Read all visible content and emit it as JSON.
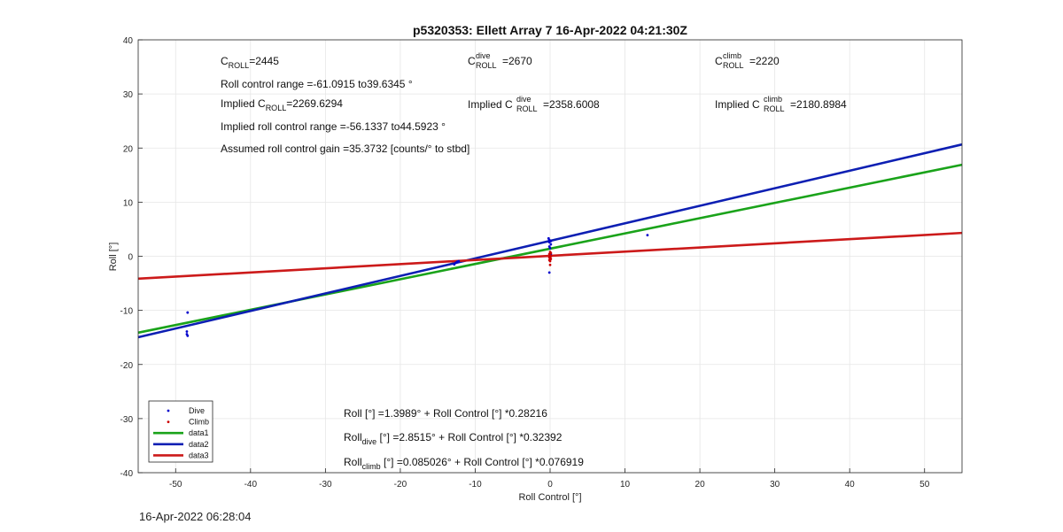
{
  "chart_data": {
    "type": "scatter",
    "title": "p5320353: Ellett Array 7 16-Apr-2022 04:21:30Z",
    "xlabel": "Roll Control [°]",
    "ylabel": "Roll [°]",
    "xlim": [
      -55,
      55
    ],
    "ylim": [
      -40,
      40
    ],
    "xticks": [
      -50,
      -40,
      -30,
      -20,
      -10,
      0,
      10,
      20,
      30,
      40,
      50
    ],
    "yticks": [
      -40,
      -30,
      -20,
      -10,
      0,
      10,
      20,
      30,
      40
    ],
    "grid": true,
    "legend_placement": "bottom-left",
    "colors": {
      "dive": "#0000cc",
      "climb": "#cc0000",
      "data1": "#1aa31a",
      "data2": "#0d1fb3",
      "data3": "#cc1a1a"
    },
    "series": [
      {
        "name": "Dive",
        "kind": "points",
        "points": [
          [
            -48.4,
            -10.4
          ],
          [
            -48.5,
            -13.9
          ],
          [
            -48.5,
            -14.4
          ],
          [
            -48.4,
            -14.7
          ],
          [
            -12.8,
            -1.5
          ],
          [
            -12.6,
            -1.2
          ],
          [
            -12.4,
            -1.0
          ],
          [
            -12.2,
            -0.9
          ],
          [
            -0.2,
            3.3
          ],
          [
            -0.1,
            3.0
          ],
          [
            0.1,
            2.8
          ],
          [
            -0.1,
            2.6
          ],
          [
            0.1,
            2.2
          ],
          [
            -0.1,
            1.8
          ],
          [
            0.0,
            1.5
          ],
          [
            0.1,
            0.4
          ],
          [
            -0.1,
            -3.0
          ],
          [
            13.0,
            3.9
          ]
        ]
      },
      {
        "name": "Climb",
        "kind": "points",
        "points": [
          [
            0.0,
            0.8
          ],
          [
            0.1,
            0.6
          ],
          [
            -0.1,
            0.4
          ],
          [
            0.0,
            0.2
          ],
          [
            0.1,
            0.0
          ],
          [
            -0.1,
            -0.2
          ],
          [
            0.0,
            -0.3
          ],
          [
            0.1,
            -0.5
          ],
          [
            -0.1,
            -0.7
          ],
          [
            0.0,
            -0.9
          ],
          [
            0.0,
            -1.6
          ]
        ]
      },
      {
        "name": "data1",
        "kind": "line",
        "intercept": 1.3989,
        "slope": 0.28216
      },
      {
        "name": "data2",
        "kind": "line",
        "intercept": 2.8515,
        "slope": 0.32392
      },
      {
        "name": "data3",
        "kind": "line",
        "intercept": 0.085026,
        "slope": 0.076919
      }
    ],
    "annotations": {
      "c_roll": "=2445",
      "roll_range": "Roll control range =-61.0915 to39.6345 °",
      "implied_c_roll": "=2269.6294",
      "implied_range": "Implied roll control range =-56.1337 to44.5923 °",
      "gain": "Assumed roll control gain =35.3732 [counts/° to stbd]",
      "c_roll_dive": "=2670",
      "implied_c_roll_dive": "=2358.6008",
      "c_roll_climb": "=2220",
      "implied_c_roll_climb": "=2180.8984",
      "eq_all": "Roll [°] =1.3989° + Roll Control [°] *0.28216",
      "eq_dive": " [°] =2.8515° + Roll Control [°] *0.32392",
      "eq_climb": " [°] =0.085026° + Roll Control [°] *0.076919",
      "txt_c": "C",
      "txt_roll_sub": "ROLL",
      "txt_dive_sup": "dive",
      "txt_climb_sup": "climb",
      "txt_implied": "Implied C",
      "txt_roll": "Roll",
      "txt_dive_sub": "dive",
      "txt_climb_sub": "climb"
    }
  },
  "footer": {
    "timestamp": "16-Apr-2022 06:28:04"
  }
}
